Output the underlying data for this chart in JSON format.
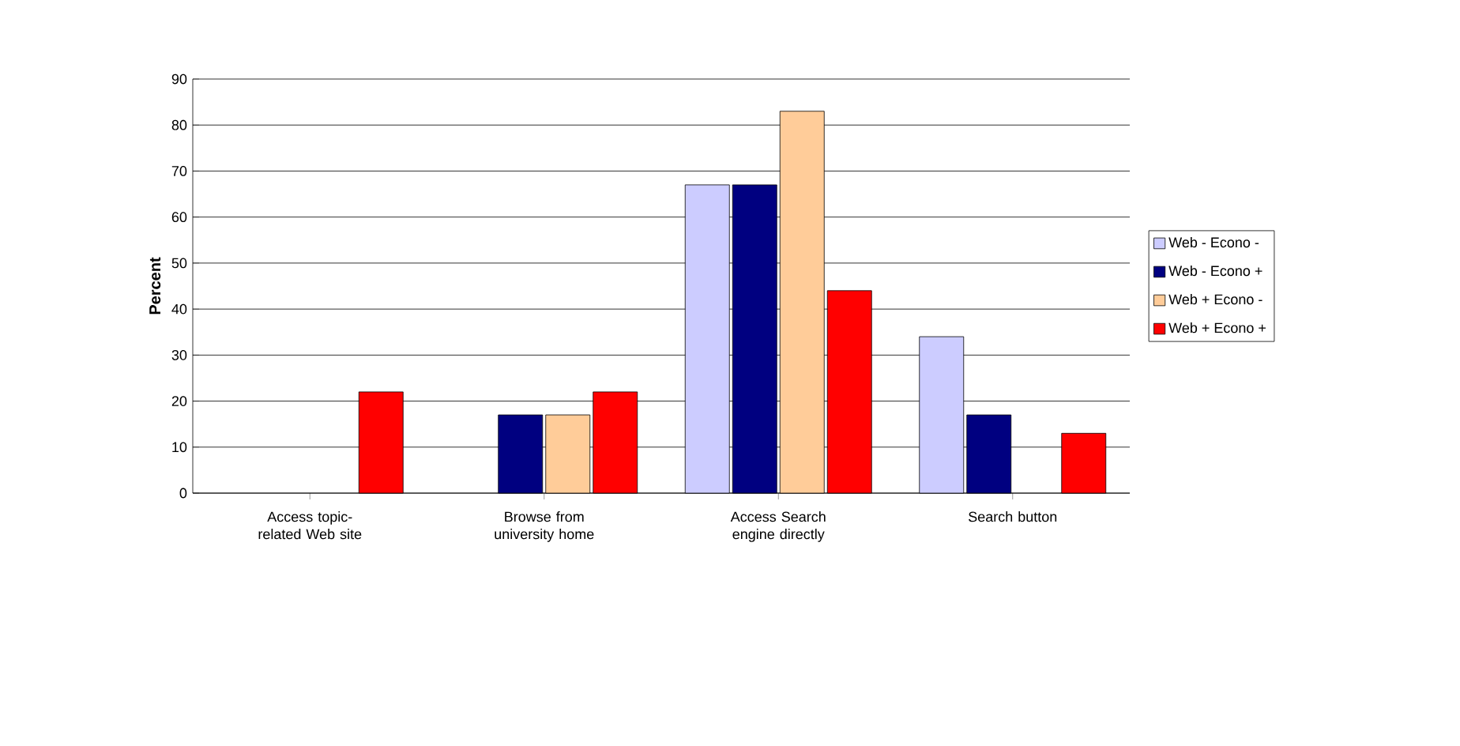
{
  "chart_data": {
    "type": "bar",
    "ylabel": "Percent",
    "categories": [
      "Access topic-related Web site",
      "Browse from university home",
      "Access Search engine directly",
      "Search button"
    ],
    "series": [
      {
        "name": "Web - Econo -",
        "color": "#ccccff",
        "values": [
          null,
          null,
          67,
          34
        ]
      },
      {
        "name": "Web - Econo +",
        "color": "#000080",
        "values": [
          null,
          17,
          67,
          17
        ]
      },
      {
        "name": "Web + Econo -",
        "color": "#ffcc99",
        "values": [
          null,
          17,
          83,
          null
        ]
      },
      {
        "name": "Web + Econo +",
        "color": "#ff0000",
        "values": [
          22,
          22,
          44,
          13
        ]
      }
    ],
    "ylim": [
      0,
      90
    ],
    "yticks": [
      0,
      10,
      20,
      30,
      40,
      50,
      60,
      70,
      80,
      90
    ],
    "grid": "y",
    "legend": "right"
  }
}
